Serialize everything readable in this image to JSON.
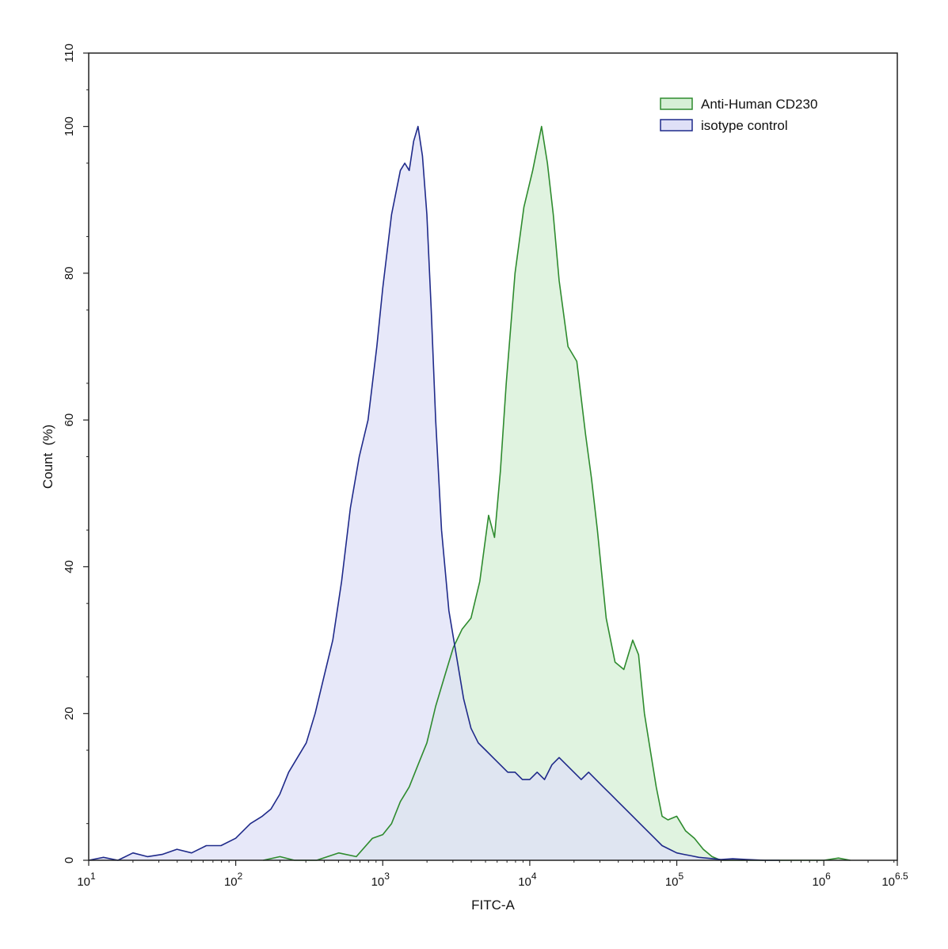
{
  "chart_data": {
    "type": "area",
    "xlabel": "FITC-A",
    "ylabel": "Count  (%)",
    "x_scale": "log10",
    "xlim": [
      10,
      3162277.66
    ],
    "ylim": [
      0,
      110
    ],
    "grid": false,
    "legend_position": "top-right",
    "x_ticks": [
      {
        "value": 10,
        "base": "10",
        "exp": "1"
      },
      {
        "value": 100,
        "base": "10",
        "exp": "2"
      },
      {
        "value": 1000,
        "base": "10",
        "exp": "3"
      },
      {
        "value": 10000,
        "base": "10",
        "exp": "4"
      },
      {
        "value": 100000,
        "base": "10",
        "exp": "5"
      },
      {
        "value": 1000000,
        "base": "10",
        "exp": "6"
      },
      {
        "value": 3162277.66,
        "base": "10",
        "exp": "6.5"
      }
    ],
    "y_ticks": [
      "0",
      "20",
      "40",
      "60",
      "80",
      "100",
      "110"
    ],
    "series": [
      {
        "name": "Anti-Human CD230",
        "line_color": "#2e8b2e",
        "fill_color": "#d6efd6",
        "x": [
          154,
          200,
          251,
          302,
          355,
          501,
          661,
          851,
          1000,
          1148,
          1318,
          1514,
          1738,
          1995,
          2291,
          2630,
          3020,
          3467,
          3981,
          4571,
          5248,
          5754,
          6310,
          6918,
          7943,
          9120,
          10471,
          12023,
          13183,
          14454,
          15849,
          18197,
          20893,
          23988,
          26303,
          28840,
          33113,
          38019,
          43652,
          50119,
          54954,
          60256,
          66069,
          72444,
          79433,
          87096,
          100000,
          114815,
          131826,
          151356,
          173780,
          199526,
          229087,
          263027,
          363078,
          1000000,
          1258925,
          1513561
        ],
        "values": [
          0,
          0.5,
          0,
          0,
          0,
          1,
          0.5,
          3,
          3.5,
          5,
          8,
          10,
          13,
          16,
          21,
          25,
          29,
          31.5,
          33,
          38,
          47,
          44,
          53,
          65,
          80,
          89,
          94,
          100,
          95,
          88,
          79,
          70,
          68,
          58,
          52,
          45,
          33,
          27,
          26,
          30,
          28,
          20,
          15,
          10,
          6,
          5.5,
          6,
          4,
          3,
          1.5,
          0.5,
          0,
          0,
          0,
          0,
          0,
          0.3,
          0
        ]
      },
      {
        "name": "isotype control",
        "line_color": "#1f2a8a",
        "fill_color": "#dfe0f7",
        "x": [
          10,
          12.6,
          15.8,
          20,
          25.1,
          31.6,
          39.8,
          50.1,
          63.1,
          79.4,
          100,
          125.9,
          151.4,
          173.8,
          199.5,
          229.1,
          263,
          302,
          346.7,
          398.1,
          457.1,
          524.8,
          602.6,
          691.8,
          794.3,
          912,
          1000,
          1148,
          1318,
          1413,
          1514,
          1622,
          1738,
          1862,
          1995,
          2138,
          2291,
          2512,
          2818,
          3162,
          3548,
          3981,
          4467,
          5012,
          5623,
          6310,
          7079,
          7943,
          8913,
          10000,
          11220,
          12589,
          14125,
          15849,
          17783,
          19953,
          22387,
          25119,
          28184,
          31623,
          35481,
          39811,
          44668,
          50119,
          56234,
          63096,
          70795,
          79433,
          89125,
          100000,
          112202,
          125893,
          141254,
          158489,
          177828,
          199526,
          239883,
          301995,
          398107,
          501187
        ],
        "values": [
          0,
          0.4,
          0,
          1,
          0.5,
          0.8,
          1.5,
          1,
          2,
          2,
          3,
          5,
          6,
          7,
          9,
          12,
          14,
          16,
          20,
          25,
          30,
          38,
          48,
          55,
          60,
          70,
          78,
          88,
          94,
          95,
          94,
          98,
          100,
          96,
          88,
          75,
          60,
          45,
          34,
          28,
          22,
          18,
          16,
          15,
          14,
          13,
          12,
          12,
          11,
          11,
          12,
          11,
          13,
          14,
          13,
          12,
          11,
          12,
          11,
          10,
          9,
          8,
          7,
          6,
          5,
          4,
          3,
          2,
          1.5,
          1,
          0.8,
          0.6,
          0.4,
          0.3,
          0.2,
          0.1,
          0.2,
          0.1,
          0,
          0
        ]
      }
    ]
  }
}
